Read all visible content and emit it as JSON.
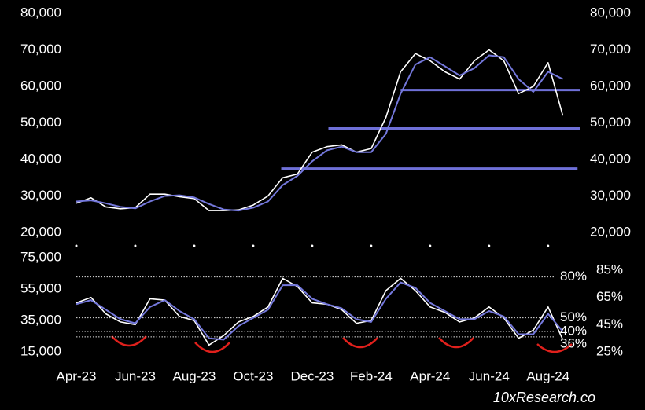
{
  "chart_data": [
    {
      "type": "line",
      "xlim": [
        0,
        17.1
      ],
      "ylim": [
        20000,
        80000
      ],
      "yticks": [
        {
          "value": 20000,
          "label": "20,000"
        },
        {
          "value": 30000,
          "label": "30,000"
        },
        {
          "value": 40000,
          "label": "40,000"
        },
        {
          "value": 50000,
          "label": "50,000"
        },
        {
          "value": 60000,
          "label": "60,000"
        },
        {
          "value": 70000,
          "label": "70,000"
        },
        {
          "value": 80000,
          "label": "80,000"
        }
      ],
      "x": [
        0,
        0.5,
        1,
        1.5,
        2,
        2.5,
        3,
        3.5,
        4,
        4.5,
        5,
        5.5,
        6,
        6.5,
        7,
        7.5,
        8,
        8.5,
        9,
        9.5,
        10,
        10.5,
        11,
        11.5,
        12,
        12.5,
        13,
        13.5,
        14,
        14.5,
        15,
        15.5,
        16,
        16.5
      ],
      "series": [
        {
          "color": "#ffffff",
          "values": [
            28000,
            29500,
            27000,
            26500,
            26800,
            30500,
            30500,
            29800,
            29300,
            26000,
            26000,
            26200,
            27500,
            30000,
            35000,
            36000,
            42000,
            43500,
            44000,
            42000,
            43000,
            51500,
            64000,
            69000,
            67000,
            64000,
            62000,
            67000,
            70000,
            67000,
            58000,
            60000,
            66500,
            52000
          ]
        },
        {
          "color": "#7478dc",
          "values": [
            28500,
            28800,
            28000,
            27000,
            26600,
            28500,
            30000,
            30200,
            29600,
            27800,
            26300,
            26000,
            26800,
            28500,
            33000,
            35500,
            39500,
            42500,
            43500,
            42000,
            42000,
            47000,
            58000,
            66000,
            68000,
            65500,
            63000,
            65000,
            68500,
            68000,
            62000,
            58500,
            64000,
            62000
          ]
        }
      ],
      "levels": [
        {
          "value": 59000,
          "x": [
            11,
            17.1
          ],
          "color": "#6f70d8"
        },
        {
          "value": 48500,
          "x": [
            8.55,
            17.1
          ],
          "color": "#6f70d8"
        },
        {
          "value": 37500,
          "x": [
            6.95,
            17
          ]
        }
      ]
    },
    {
      "type": "line",
      "xlim": [
        0,
        17.1
      ],
      "xticks": [
        {
          "value": 0,
          "label": "Apr-23"
        },
        {
          "value": 2,
          "label": "Jun-23"
        },
        {
          "value": 4,
          "label": "Aug-23"
        },
        {
          "value": 6,
          "label": "Oct-23"
        },
        {
          "value": 8,
          "label": "Dec-23"
        },
        {
          "value": 10,
          "label": "Feb-24"
        },
        {
          "value": 12,
          "label": "Apr-24"
        },
        {
          "value": 14,
          "label": "Jun-24"
        },
        {
          "value": 16,
          "label": "Aug-24"
        }
      ],
      "ylim": [
        15000,
        75000
      ],
      "yticks": [
        {
          "value": 15000,
          "label": "15,000"
        },
        {
          "value": 35000,
          "label": "35,000"
        },
        {
          "value": 55000,
          "label": "55,000"
        },
        {
          "value": 75000,
          "label": "75,000"
        }
      ],
      "y2lim": [
        25,
        85
      ],
      "y2ticks": [
        {
          "value": 25,
          "label": "25%"
        },
        {
          "value": 45,
          "label": "45%"
        },
        {
          "value": 65,
          "label": "65%"
        },
        {
          "value": 85,
          "label": "85%"
        }
      ],
      "reference_lines": [
        {
          "value": 80,
          "label": "80%"
        },
        {
          "value": 50,
          "label": "50%"
        },
        {
          "value": 40,
          "label": "40%"
        },
        {
          "value": 36,
          "label": "36%"
        }
      ],
      "x": [
        0,
        0.5,
        1,
        1.5,
        2,
        2.5,
        3,
        3.5,
        4,
        4.5,
        5,
        5.5,
        6,
        6.5,
        7,
        7.5,
        8,
        8.5,
        9,
        9.5,
        10,
        10.5,
        11,
        11.5,
        12,
        12.5,
        13,
        13.5,
        14,
        14.5,
        15,
        15.5,
        16,
        16.5
      ],
      "series": [
        {
          "color": "#ffffff",
          "axis": "y2",
          "values": [
            61,
            65,
            53,
            47,
            45,
            64,
            63,
            51,
            48,
            30,
            37,
            47,
            51,
            58,
            79,
            73,
            61,
            60,
            56,
            46,
            48,
            70,
            79,
            70,
            58,
            54,
            47,
            50,
            58,
            50,
            35,
            41,
            58,
            34
          ]
        },
        {
          "color": "#7478dc",
          "axis": "y2",
          "values": [
            60,
            63,
            56,
            49,
            46,
            58,
            63,
            55,
            49,
            35,
            34,
            44,
            50,
            56,
            74,
            74,
            64,
            60,
            57,
            49,
            47,
            64,
            76,
            72,
            61,
            55,
            49,
            49,
            55,
            51,
            38,
            38,
            53,
            40
          ]
        }
      ]
    }
  ],
  "watermark": "10xResearch.co"
}
